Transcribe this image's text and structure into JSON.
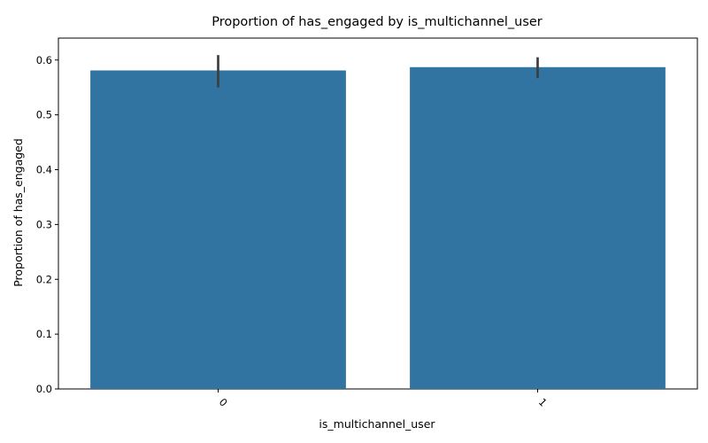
{
  "colors": {
    "bar": "#3274a1",
    "error_bar": "#3d3d3d",
    "axis": "#000000",
    "background": "#ffffff"
  },
  "chart_data": {
    "type": "bar",
    "title": "Proportion of has_engaged by is_multichannel_user",
    "xlabel": "is_multichannel_user",
    "ylabel": "Proportion of has_engaged",
    "categories": [
      "0",
      "1"
    ],
    "values": [
      0.581,
      0.587
    ],
    "error_low": [
      0.55,
      0.567
    ],
    "error_high": [
      0.609,
      0.605
    ],
    "ylim": [
      0,
      0.64
    ],
    "yticks": [
      0.0,
      0.1,
      0.2,
      0.3,
      0.4,
      0.5,
      0.6
    ],
    "ytick_labels": [
      "0.0",
      "0.1",
      "0.2",
      "0.3",
      "0.4",
      "0.5",
      "0.6"
    ],
    "xtick_rotation": 45,
    "grid": false,
    "legend": "none"
  }
}
